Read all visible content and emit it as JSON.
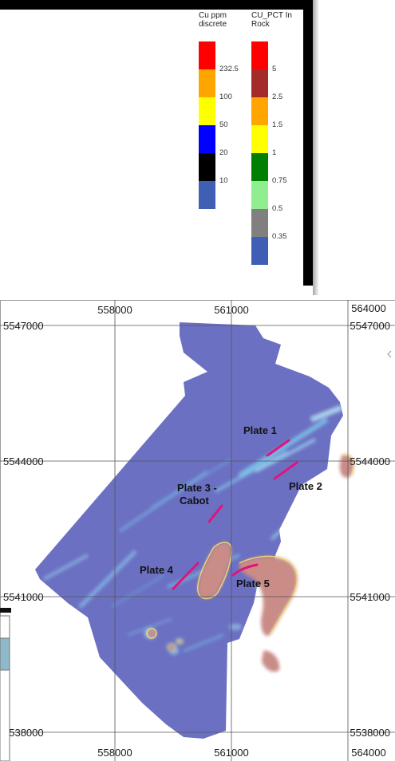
{
  "legend": {
    "cu_ppm": {
      "title": "Cu ppm\ndiscrete",
      "items": [
        {
          "color": "#ff0000",
          "label": "232.5"
        },
        {
          "color": "#ffa500",
          "label": "100"
        },
        {
          "color": "#ffff00",
          "label": "50"
        },
        {
          "color": "#0000ff",
          "label": "20"
        },
        {
          "color": "#000000",
          "label": "10"
        },
        {
          "color": "#3f5fb5",
          "label": ""
        }
      ]
    },
    "cu_pct": {
      "title": "CU_PCT In\nRock",
      "items": [
        {
          "color": "#ff0000",
          "label": "5"
        },
        {
          "color": "#a52a2a",
          "label": "2.5"
        },
        {
          "color": "#ffa500",
          "label": "1.5"
        },
        {
          "color": "#ffff00",
          "label": "1"
        },
        {
          "color": "#008000",
          "label": "0.75"
        },
        {
          "color": "#90ee90",
          "label": "0.5"
        },
        {
          "color": "#808080",
          "label": "0.35"
        },
        {
          "color": "#3f5fb5",
          "label": ""
        }
      ]
    }
  },
  "map": {
    "x_ticks_top": [
      "558000",
      "561000",
      "564000"
    ],
    "x_ticks_bottom": [
      "558000",
      "561000",
      "564000"
    ],
    "y_ticks_left": [
      "5547000",
      "5544000",
      "5541000",
      "5538000"
    ],
    "y_ticks_right": [
      "5547000",
      "5544000",
      "5541000",
      "5538000"
    ],
    "plates": [
      {
        "label": "Plate 1"
      },
      {
        "label": "Plate 2"
      },
      {
        "label": "Plate 3 -"
      },
      {
        "label": "Cabot"
      },
      {
        "label": "Plate 4"
      },
      {
        "label": "Plate 5"
      }
    ],
    "colors": {
      "survey_base": "#6b70c2",
      "anomaly_high": "#c98c86",
      "plate_line": "#e0147a",
      "grid": "#555555"
    }
  }
}
